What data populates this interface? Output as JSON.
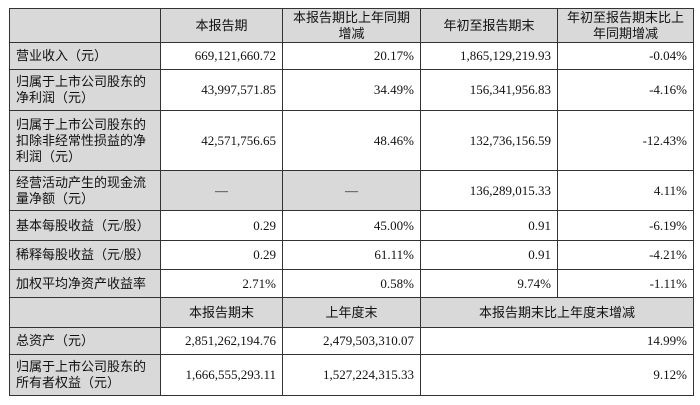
{
  "header1": [
    "",
    "本报告期",
    "本报告期比上年同期增减",
    "年初至报告期末",
    "年初至报告期末比上年同期增减"
  ],
  "rows1": [
    {
      "label": "营业收入（元）",
      "values": [
        "669,121,660.72",
        "20.17%",
        "1,865,129,219.93",
        "-0.04%"
      ]
    },
    {
      "label": "归属于上市公司股东的净利润（元）",
      "values": [
        "43,997,571.85",
        "34.49%",
        "156,341,956.83",
        "-4.16%"
      ]
    },
    {
      "label": "归属于上市公司股东的扣除非经常性损益的净利润（元）",
      "values": [
        "42,571,756.65",
        "48.46%",
        "132,736,156.59",
        "-12.43%"
      ]
    },
    {
      "label": "经营活动产生的现金流量净额（元）",
      "values": [
        "—",
        "—",
        "136,289,015.33",
        "4.11%"
      ]
    },
    {
      "label": "基本每股收益（元/股）",
      "values": [
        "0.29",
        "45.00%",
        "0.91",
        "-6.19%"
      ]
    },
    {
      "label": "稀释每股收益（元/股）",
      "values": [
        "0.29",
        "61.11%",
        "0.91",
        "-4.21%"
      ]
    },
    {
      "label": "加权平均净资产收益率",
      "values": [
        "2.71%",
        "0.58%",
        "9.74%",
        "-1.11%"
      ]
    }
  ],
  "header2": [
    "",
    "本报告期末",
    "上年度末",
    "本报告期末比上年度末增减"
  ],
  "rows2": [
    {
      "label": "总资产（元）",
      "values": [
        "2,851,262,194.76",
        "2,479,503,310.07",
        "14.99%"
      ]
    },
    {
      "label": "归属于上市公司股东的所有者权益（元）",
      "values": [
        "1,666,555,293.11",
        "1,527,224,315.33",
        "9.12%"
      ]
    }
  ],
  "colors": {
    "header_bg": "#d9d9d9",
    "border": "#333333"
  }
}
